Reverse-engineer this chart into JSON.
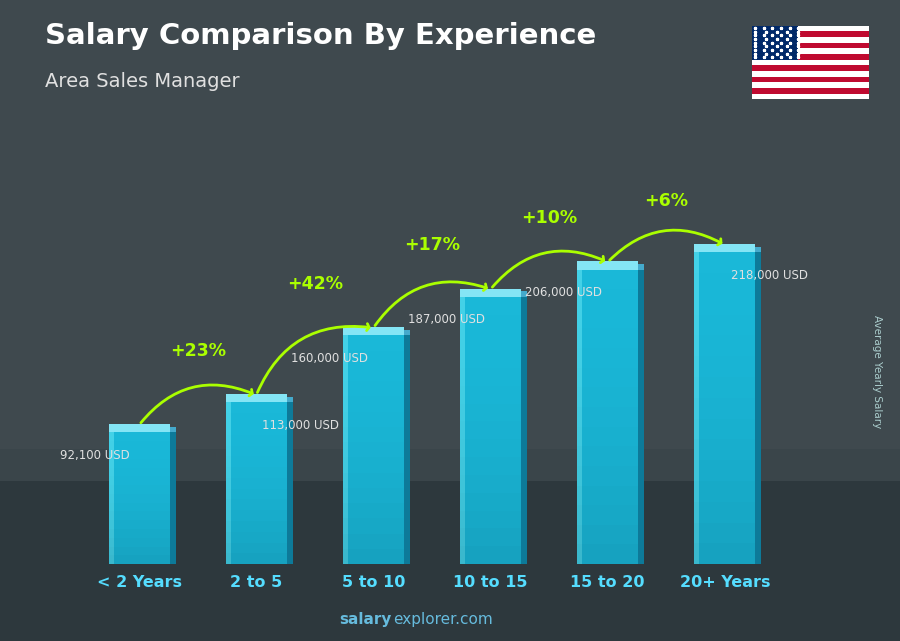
{
  "title": "Salary Comparison By Experience",
  "subtitle": "Area Sales Manager",
  "categories": [
    "< 2 Years",
    "2 to 5",
    "5 to 10",
    "10 to 15",
    "15 to 20",
    "20+ Years"
  ],
  "values": [
    92100,
    113000,
    160000,
    187000,
    206000,
    218000
  ],
  "salary_labels": [
    "92,100 USD",
    "113,000 USD",
    "160,000 USD",
    "187,000 USD",
    "206,000 USD",
    "218,000 USD"
  ],
  "pct_labels": [
    "+23%",
    "+42%",
    "+17%",
    "+10%",
    "+6%"
  ],
  "bar_face_color": "#1ab8d8",
  "bar_right_color": "#0d7a99",
  "bar_top_color": "#5cddf5",
  "bar_left_highlight": "#55ddee",
  "bg_color": "#4a6070",
  "title_color": "#ffffff",
  "subtitle_color": "#e0e0e0",
  "salary_label_color": "#e0e0e0",
  "pct_color": "#aaff00",
  "xticklabel_color": "#55ddff",
  "ylabel_text": "Average Yearly Salary",
  "footer_salary_bold": "salary",
  "footer_rest": "explorer.com",
  "footer_color": "#66bbdd",
  "ylim": [
    0,
    260000
  ],
  "bar_width": 0.52
}
